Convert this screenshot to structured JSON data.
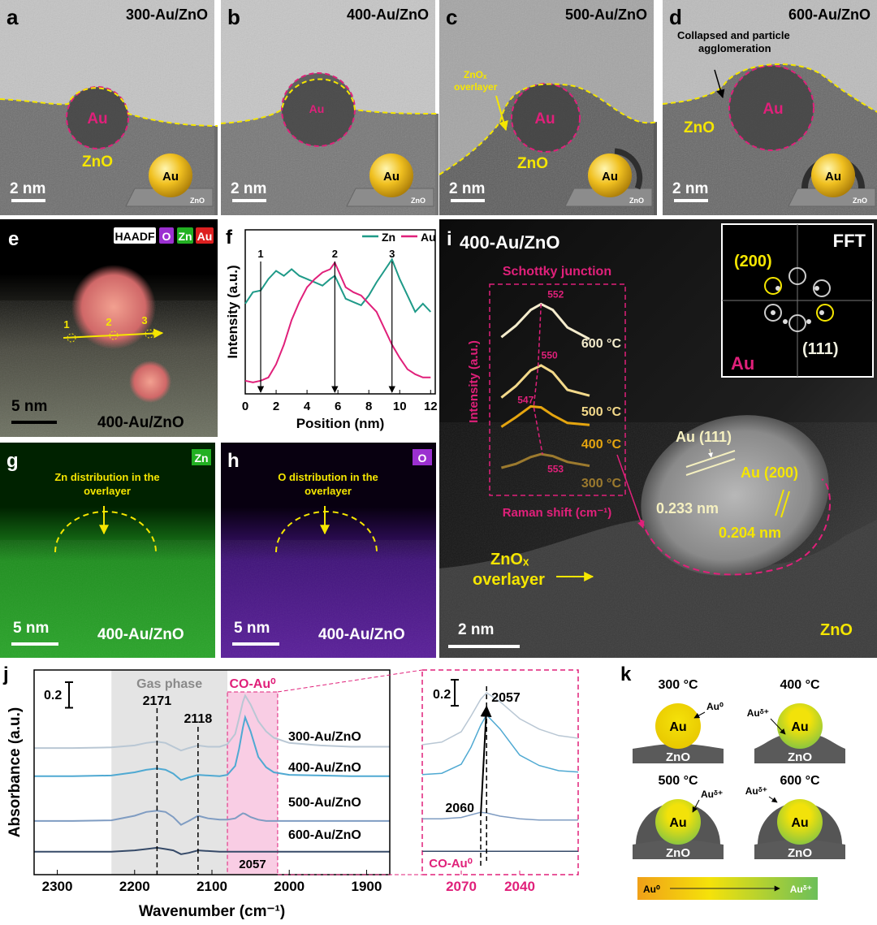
{
  "panels": {
    "a": {
      "label": "a",
      "title": "300-Au/ZnO",
      "particle": "Au",
      "support": "ZnO",
      "scale_bar": "2 nm",
      "model_particle": "Au",
      "model_support": "ZnO"
    },
    "b": {
      "label": "b",
      "title": "400-Au/ZnO",
      "particle": "Au",
      "scale_bar": "2 nm",
      "model_particle": "Au",
      "model_support": "ZnO"
    },
    "c": {
      "label": "c",
      "title": "500-Au/ZnO",
      "overlayer": [
        "ZnOₓ",
        "overlayer"
      ],
      "particle": "Au",
      "support": "ZnO",
      "scale_bar": "2 nm",
      "model_particle": "Au",
      "model_support": "ZnO"
    },
    "d": {
      "label": "d",
      "title": "600-Au/ZnO",
      "note": [
        "Collapsed and particle",
        "agglomeration"
      ],
      "particle": "Au",
      "support": "ZnO",
      "scale_bar": "2 nm",
      "model_particle": "Au",
      "model_support": "ZnO"
    },
    "e": {
      "label": "e",
      "legend": [
        "HAADF",
        "O",
        "Zn",
        "Au"
      ],
      "points": [
        "1",
        "2",
        "3"
      ],
      "scale_bar": "5 nm",
      "sample": "400-Au/ZnO"
    },
    "g": {
      "label": "g",
      "channel": "Zn",
      "note": [
        "Zn distribution in the",
        "overlayer"
      ],
      "scale_bar": "5 nm",
      "sample": "400-Au/ZnO"
    },
    "h": {
      "label": "h",
      "channel": "O",
      "note": [
        "O distribution in the",
        "overlayer"
      ],
      "scale_bar": "5 nm",
      "sample": "400-Au/ZnO"
    },
    "i": {
      "label": "i",
      "title": "400-Au/ZnO",
      "fft": {
        "title": "FFT",
        "planes": [
          "(200)",
          "(111)"
        ],
        "element": "Au"
      },
      "fringes": [
        "Au (111)",
        "0.233 nm",
        "Au (200)",
        "0.204 nm"
      ],
      "overlayer": [
        "ZnOₓ",
        "overlayer"
      ],
      "scale_bar": "2 nm",
      "support": "ZnO"
    },
    "k": {
      "label": "k",
      "states": [
        {
          "temp": "300 °C",
          "particle": "Au",
          "support": "ZnO",
          "state": "Au⁰"
        },
        {
          "temp": "400 °C",
          "particle": "Au",
          "support": "ZnO",
          "state": "Auᵟ⁺"
        },
        {
          "temp": "500 °C",
          "particle": "Au",
          "support": "ZnO",
          "state": "Auᵟ⁺"
        },
        {
          "temp": "600 °C",
          "particle": "Au",
          "support": "ZnO",
          "state": "Auᵟ⁺"
        }
      ],
      "scale": [
        "Au⁰",
        "Auᵟ⁺"
      ]
    }
  },
  "chart_data": [
    {
      "type": "line",
      "label": "f",
      "xlabel": "Position (nm)",
      "ylabel": "Intensity (a.u.)",
      "x": [
        0,
        0.5,
        1,
        1.5,
        2,
        2.5,
        3,
        3.5,
        4,
        4.5,
        5,
        5.5,
        5.8,
        6.5,
        7,
        7.5,
        8,
        8.5,
        9,
        9.5,
        10,
        10.5,
        11,
        11.5,
        12
      ],
      "xlim": [
        0,
        12.3
      ],
      "xticks": [
        0,
        2,
        4,
        6,
        8,
        10,
        12
      ],
      "ylim": [
        0,
        1
      ],
      "series": [
        {
          "name": "Zn",
          "color": "#1f9a88",
          "values": [
            0.55,
            0.62,
            0.63,
            0.7,
            0.75,
            0.72,
            0.76,
            0.72,
            0.7,
            0.68,
            0.66,
            0.7,
            0.72,
            0.58,
            0.56,
            0.54,
            0.6,
            0.68,
            0.75,
            0.82,
            0.7,
            0.6,
            0.5,
            0.55,
            0.5
          ]
        },
        {
          "name": "Au",
          "color": "#e0207a",
          "values": [
            0.08,
            0.07,
            0.08,
            0.1,
            0.18,
            0.3,
            0.45,
            0.56,
            0.65,
            0.7,
            0.74,
            0.76,
            0.8,
            0.65,
            0.62,
            0.6,
            0.55,
            0.5,
            0.4,
            0.3,
            0.22,
            0.15,
            0.12,
            0.1,
            0.1
          ]
        }
      ],
      "markers": [
        {
          "label": "1",
          "x": 1
        },
        {
          "label": "2",
          "x": 5.8
        },
        {
          "label": "3",
          "x": 9.5
        }
      ]
    },
    {
      "type": "line",
      "label": "j",
      "xlabel": "Wavenumber (cm⁻¹)",
      "ylabel": "Absorbance (a.u.)",
      "x": [
        2330,
        2280,
        2230,
        2200,
        2185,
        2171,
        2160,
        2150,
        2140,
        2130,
        2118,
        2105,
        2090,
        2080,
        2070,
        2065,
        2060,
        2057,
        2050,
        2040,
        2030,
        2020,
        2000,
        1960,
        1920,
        1870
      ],
      "xlim": [
        2330,
        1870
      ],
      "xticks": [
        2300,
        2200,
        2100,
        2000,
        1900
      ],
      "ylim": [
        0,
        1.6
      ],
      "series": [
        {
          "name": "300-Au/ZnO",
          "color": "#b9c7d4",
          "values": [
            0.99,
            0.99,
            0.995,
            1.01,
            1.03,
            1.04,
            1.03,
            1.0,
            0.97,
            0.99,
            1.01,
            1.0,
            1.0,
            1.02,
            1.1,
            1.22,
            1.35,
            1.4,
            1.33,
            1.2,
            1.12,
            1.07,
            1.03,
            1.01,
            1.0,
            1.0
          ]
        },
        {
          "name": "400-Au/ZnO",
          "color": "#4fa9d2",
          "values": [
            0.77,
            0.77,
            0.775,
            0.8,
            0.82,
            0.83,
            0.82,
            0.79,
            0.74,
            0.76,
            0.78,
            0.775,
            0.77,
            0.78,
            0.85,
            0.98,
            1.15,
            1.23,
            1.12,
            0.92,
            0.84,
            0.8,
            0.78,
            0.775,
            0.77,
            0.77
          ]
        },
        {
          "name": "500-Au/ZnO",
          "color": "#7f9cc2",
          "values": [
            0.42,
            0.42,
            0.425,
            0.46,
            0.49,
            0.5,
            0.49,
            0.45,
            0.39,
            0.42,
            0.46,
            0.44,
            0.43,
            0.43,
            0.44,
            0.46,
            0.48,
            0.475,
            0.45,
            0.43,
            0.42,
            0.42,
            0.42,
            0.42,
            0.42,
            0.42
          ]
        },
        {
          "name": "600-Au/ZnO",
          "color": "#364a68",
          "values": [
            0.18,
            0.18,
            0.18,
            0.19,
            0.2,
            0.21,
            0.2,
            0.19,
            0.16,
            0.17,
            0.19,
            0.185,
            0.18,
            0.18,
            0.18,
            0.18,
            0.18,
            0.18,
            0.18,
            0.18,
            0.18,
            0.18,
            0.18,
            0.18,
            0.18,
            0.18
          ]
        }
      ],
      "scale_bar": 0.2,
      "bands": [
        {
          "label": "Gas phase",
          "range": [
            2230,
            2080
          ]
        },
        {
          "label": "CO-Au⁰",
          "range": [
            2080,
            2015
          ]
        }
      ],
      "band_value": 2057,
      "peak_lines": [
        2171,
        2118
      ],
      "inset": {
        "xlim": [
          2090,
          2010
        ],
        "xticks": [
          2070,
          2040
        ],
        "ylim": [
          0,
          1.5
        ],
        "scale_bar": 0.2,
        "peak_labels": [
          2057,
          2060
        ],
        "band_label": "CO-Au⁰"
      }
    },
    {
      "type": "line",
      "title": "Schottky junction",
      "xlabel": "Raman shift (cm⁻¹)",
      "ylabel": "Intensity (a.u.)",
      "x": [
        525,
        535,
        545,
        552,
        560,
        570,
        585
      ],
      "xlim": [
        522,
        590
      ],
      "ylim": [
        0,
        10
      ],
      "series": [
        {
          "name": "600 °C",
          "color": "#f4eccd",
          "peak": 552,
          "values": [
            7.7,
            8.3,
            9.1,
            9.4,
            9.1,
            8.2,
            7.6
          ]
        },
        {
          "name": "500 °C",
          "color": "#f3d98a",
          "peak": 550,
          "values": [
            4.6,
            5.2,
            6.0,
            6.25,
            5.9,
            5.0,
            4.7
          ]
        },
        {
          "name": "400 °C",
          "color": "#e5a50f",
          "peak": 547,
          "values": [
            3.1,
            3.6,
            4.15,
            4.1,
            3.7,
            3.3,
            3.2
          ]
        },
        {
          "name": "300 °C",
          "color": "#9c7a2e",
          "peak": 553,
          "values": [
            1.0,
            1.2,
            1.55,
            1.7,
            1.6,
            1.3,
            1.1
          ]
        }
      ]
    }
  ]
}
